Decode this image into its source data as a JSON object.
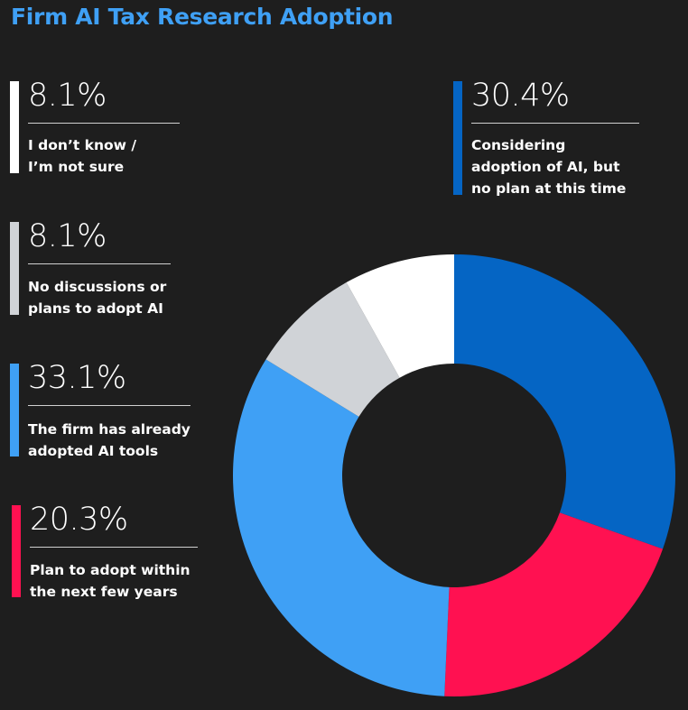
{
  "title": "Firm AI Tax Research Adoption",
  "chart_data": {
    "type": "pie",
    "title": "Firm AI Tax Research Adoption",
    "donut": true,
    "slices": [
      {
        "label": "Considering adoption of AI, but no plan at this time",
        "value": 30.4,
        "pct_text": "30.4%",
        "color": "#0565c4"
      },
      {
        "label": "Plan to adopt within the next few years",
        "value": 20.3,
        "pct_text": "20.3%",
        "color": "#ff1151"
      },
      {
        "label": "The firm has already adopted AI tools",
        "value": 33.1,
        "pct_text": "33.1%",
        "color": "#3fa0f5"
      },
      {
        "label": "No discussions or plans to adopt AI",
        "value": 8.1,
        "pct_text": "8.1%",
        "color": "#d0d3d7"
      },
      {
        "label": "I don’t know / I’m not sure",
        "value": 8.1,
        "pct_text": "8.1%",
        "color": "#ffffff"
      }
    ]
  },
  "legend": [
    {
      "pct": "8.1%",
      "label": "I don’t know /\nI’m not sure",
      "color": "#ffffff"
    },
    {
      "pct": "8.1%",
      "label": "No discussions or\nplans to adopt AI",
      "color": "#d0d3d7"
    },
    {
      "pct": "33.1%",
      "label": "The firm has already\nadopted AI tools",
      "color": "#3fa0f5"
    },
    {
      "pct": "20.3%",
      "label": "Plan to adopt within\nthe next few years",
      "color": "#ff1151"
    },
    {
      "pct": "30.4%",
      "label": "Considering\nadoption of AI, but\nno plan at this time",
      "color": "#0565c4"
    }
  ]
}
